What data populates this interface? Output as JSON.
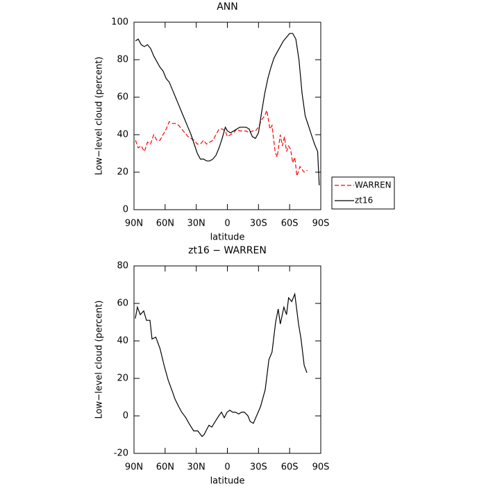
{
  "chart_data": [
    {
      "type": "line",
      "title": "ANN",
      "xlabel": "latitude",
      "ylabel": "Low−level cloud (percent)",
      "xlim": [
        90,
        -90
      ],
      "xticks": [
        {
          "value": 90,
          "label": "90N"
        },
        {
          "value": 60,
          "label": "60N"
        },
        {
          "value": 30,
          "label": "30N"
        },
        0,
        {
          "value": -30,
          "label": "30S"
        },
        {
          "value": -60,
          "label": "60S"
        },
        {
          "value": -90,
          "label": "90S"
        }
      ],
      "ylim": [
        0,
        100
      ],
      "yticks": [
        0,
        20,
        40,
        60,
        80,
        100
      ],
      "legend": "right",
      "series": [
        {
          "name": "WARREN",
          "color": "#ff0000",
          "style": "dashed",
          "x": [
            88.5,
            86,
            83,
            80,
            77,
            74,
            71,
            68,
            65,
            62,
            59,
            56,
            53,
            50,
            47,
            44,
            41,
            38,
            35,
            32,
            29,
            26,
            23,
            20,
            17,
            14,
            11,
            8,
            5,
            2,
            0,
            -3,
            -6,
            -9,
            -12,
            -15,
            -18,
            -21,
            -24,
            -27,
            -30,
            -33,
            -36,
            -38,
            -41,
            -43,
            -46,
            -48,
            -51,
            -53,
            -55,
            -57,
            -59,
            -61,
            -63,
            -65,
            -67,
            -70,
            -74,
            -77
          ],
          "values": [
            37,
            33,
            34,
            31,
            36,
            35,
            40,
            37,
            37,
            40,
            43,
            47,
            46,
            46,
            45,
            43,
            41,
            39,
            38,
            37,
            35,
            35,
            37,
            35,
            36,
            37,
            40,
            43,
            43,
            42,
            39,
            40,
            41,
            43,
            42,
            42,
            42,
            41,
            42,
            42,
            44,
            48,
            50,
            53,
            43,
            45,
            31,
            28,
            40,
            34,
            39,
            31,
            34,
            32,
            25,
            28,
            18,
            23,
            20,
            21
          ]
        },
        {
          "name": "zt16",
          "color": "#000000",
          "style": "solid",
          "x": [
            88.5,
            86,
            83,
            80,
            77,
            74,
            71,
            68,
            65,
            62,
            59,
            56,
            53,
            50,
            47,
            44,
            41,
            38,
            35,
            32,
            29,
            26,
            23,
            20,
            17,
            14,
            11,
            8,
            5,
            2,
            0,
            -3,
            -6,
            -9,
            -12,
            -15,
            -18,
            -21,
            -24,
            -27,
            -30,
            -33,
            -36,
            -39,
            -42,
            -45,
            -48,
            -51,
            -54,
            -57,
            -60,
            -63,
            -66,
            -69,
            -72,
            -75,
            -78,
            -81,
            -84,
            -87,
            -88.5
          ],
          "values": [
            90,
            91,
            88,
            87,
            88,
            86,
            82,
            79,
            76,
            74,
            70,
            68,
            64,
            60,
            56,
            52,
            48,
            44,
            40,
            35,
            30,
            27,
            27,
            26,
            26,
            27,
            29,
            33,
            38,
            44,
            42,
            41,
            42,
            43,
            44,
            44,
            44,
            43,
            39,
            38,
            41,
            52,
            62,
            70,
            76,
            81,
            84,
            87,
            90,
            92,
            94,
            94,
            91,
            80,
            62,
            50,
            45,
            40,
            35,
            31,
            13
          ]
        }
      ]
    },
    {
      "type": "line",
      "title": "zt16 − WARREN",
      "xlabel": "latitude",
      "ylabel": "Low−level cloud (percent)",
      "xlim": [
        90,
        -90
      ],
      "xticks": [
        {
          "value": 90,
          "label": "90N"
        },
        {
          "value": 60,
          "label": "60N"
        },
        {
          "value": 30,
          "label": "30N"
        },
        0,
        {
          "value": -30,
          "label": "30S"
        },
        {
          "value": -60,
          "label": "60S"
        },
        {
          "value": -90,
          "label": "90S"
        }
      ],
      "ylim": [
        -20,
        80
      ],
      "yticks": [
        -20,
        0,
        20,
        40,
        60,
        80
      ],
      "series": [
        {
          "color": "#000000",
          "style": "solid",
          "x": [
            88.7,
            86.7,
            84,
            80.6,
            78,
            74.6,
            72.6,
            69,
            65,
            61,
            57,
            53,
            50.5,
            47,
            44,
            40,
            37,
            32.5,
            28.5,
            24.4,
            22.4,
            19.7,
            17.7,
            15,
            11.7,
            8.3,
            5.7,
            3,
            0.3,
            -2.4,
            -5,
            -7.7,
            -11,
            -13.7,
            -16.4,
            -19.8,
            -22,
            -25,
            -32,
            -36.5,
            -40,
            -43,
            -46.5,
            -49,
            -51,
            -54.5,
            -57,
            -59,
            -62,
            -65,
            -68.6,
            -71,
            -74,
            -76.7
          ],
          "values": [
            52,
            58,
            54,
            56,
            51,
            51,
            41,
            42,
            36,
            27,
            19,
            13,
            9,
            5,
            2,
            -1,
            -4,
            -8,
            -8,
            -11,
            -10,
            -7,
            -5,
            -6,
            -3,
            0,
            2,
            -1,
            2,
            3,
            2,
            2,
            1,
            2,
            2,
            0,
            -3,
            -4,
            5,
            14,
            30,
            34,
            50,
            57,
            49,
            58,
            54,
            63,
            61,
            65,
            49,
            41,
            27,
            23
          ]
        }
      ]
    }
  ]
}
